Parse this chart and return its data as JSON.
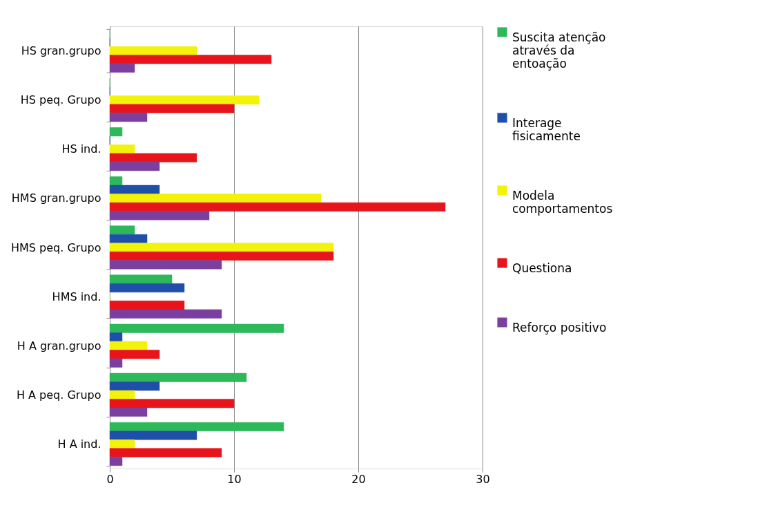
{
  "chart_data": {
    "type": "bar",
    "orientation": "horizontal",
    "categories": [
      "HS gran.grupo",
      "HS peq. Grupo",
      "HS ind.",
      "HMS gran.grupo",
      "HMS peq. Grupo",
      "HMS ind.",
      "H A gran.grupo",
      "H A peq. Grupo",
      "H A ind."
    ],
    "series": [
      {
        "name": "Suscita atenção através da entoação",
        "color": "#2db85a",
        "values": [
          0,
          0,
          1,
          1,
          2,
          5,
          14,
          11,
          14
        ]
      },
      {
        "name": "Interage fisicamente",
        "color": "#1f4fa8",
        "values": [
          0,
          0,
          0,
          4,
          3,
          6,
          1,
          4,
          7
        ]
      },
      {
        "name": "Modela comportamentos",
        "color": "#f2f20a",
        "values": [
          7,
          12,
          2,
          17,
          18,
          0,
          3,
          2,
          2
        ]
      },
      {
        "name": "Questiona",
        "color": "#e8141b",
        "values": [
          13,
          10,
          7,
          27,
          18,
          6,
          4,
          10,
          9
        ]
      },
      {
        "name": "Reforço positivo",
        "color": "#7b3fa0",
        "values": [
          2,
          3,
          4,
          8,
          9,
          9,
          1,
          3,
          1
        ]
      }
    ],
    "xlim": [
      0,
      30
    ],
    "xticks": [
      0,
      10,
      20,
      30
    ],
    "grid": "x",
    "legend": "right"
  }
}
